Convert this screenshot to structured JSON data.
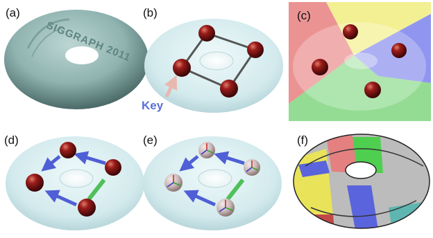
{
  "figure": {
    "panels": [
      {
        "id": "a",
        "label": "(a)"
      },
      {
        "id": "b",
        "label": "(b)"
      },
      {
        "id": "c",
        "label": "(c)"
      },
      {
        "id": "d",
        "label": "(d)"
      },
      {
        "id": "e",
        "label": "(e)"
      },
      {
        "id": "f",
        "label": "(f)"
      }
    ],
    "key_label": "Key",
    "embossed_text": "SIGGRAPH 2011",
    "colors": {
      "torus_solid": "#8fb3b0",
      "torus_glass": "#d8eef0",
      "sphere": "#7a1313",
      "arrow_blue": "#4f5fd6",
      "arrow_green": "#4fc05a",
      "key_arrow": "#e8b8b0",
      "key_text": "#5a6fd8"
    }
  }
}
